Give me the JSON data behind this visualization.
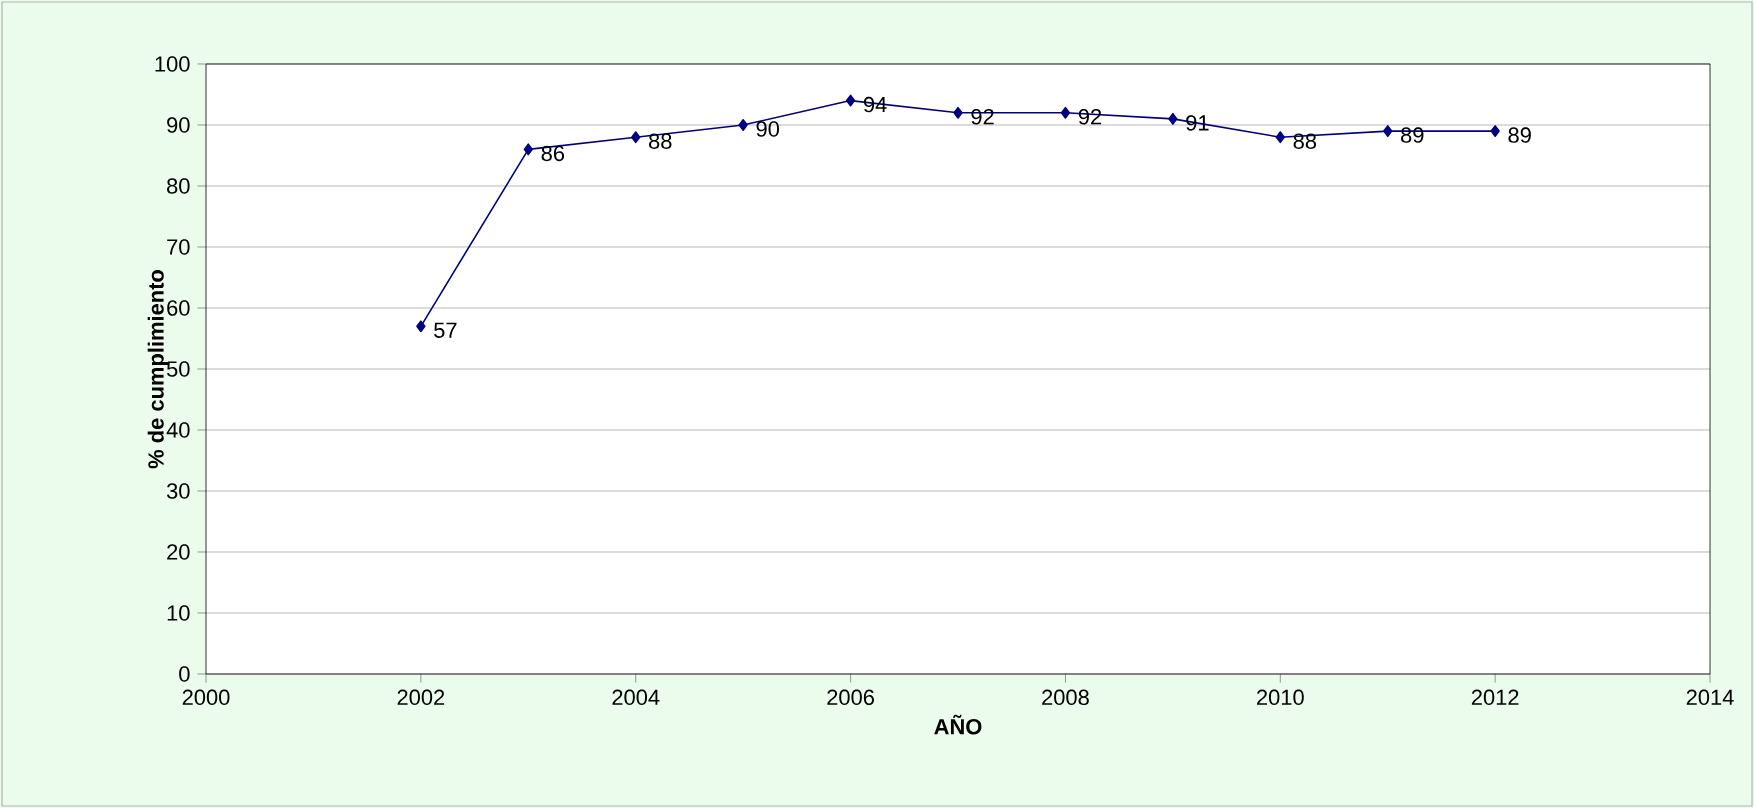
{
  "chart_data": {
    "type": "line",
    "xlabel": "AÑO",
    "ylabel": "% de cumplimiento",
    "x": [
      2002,
      2003,
      2004,
      2005,
      2006,
      2007,
      2008,
      2009,
      2010,
      2011,
      2012
    ],
    "values": [
      57,
      86,
      88,
      90,
      94,
      92,
      92,
      91,
      88,
      89,
      89
    ],
    "color": "#000080",
    "marker": "diamond",
    "line_style": "solid",
    "data_labels": true,
    "grid": "y",
    "xlim": [
      2000,
      2014
    ],
    "xticks": [
      2000,
      2002,
      2004,
      2006,
      2008,
      2010,
      2012,
      2014
    ],
    "ylim": [
      0,
      100
    ],
    "yticks": [
      0,
      10,
      20,
      30,
      40,
      50,
      60,
      70,
      80,
      90,
      100
    ]
  }
}
